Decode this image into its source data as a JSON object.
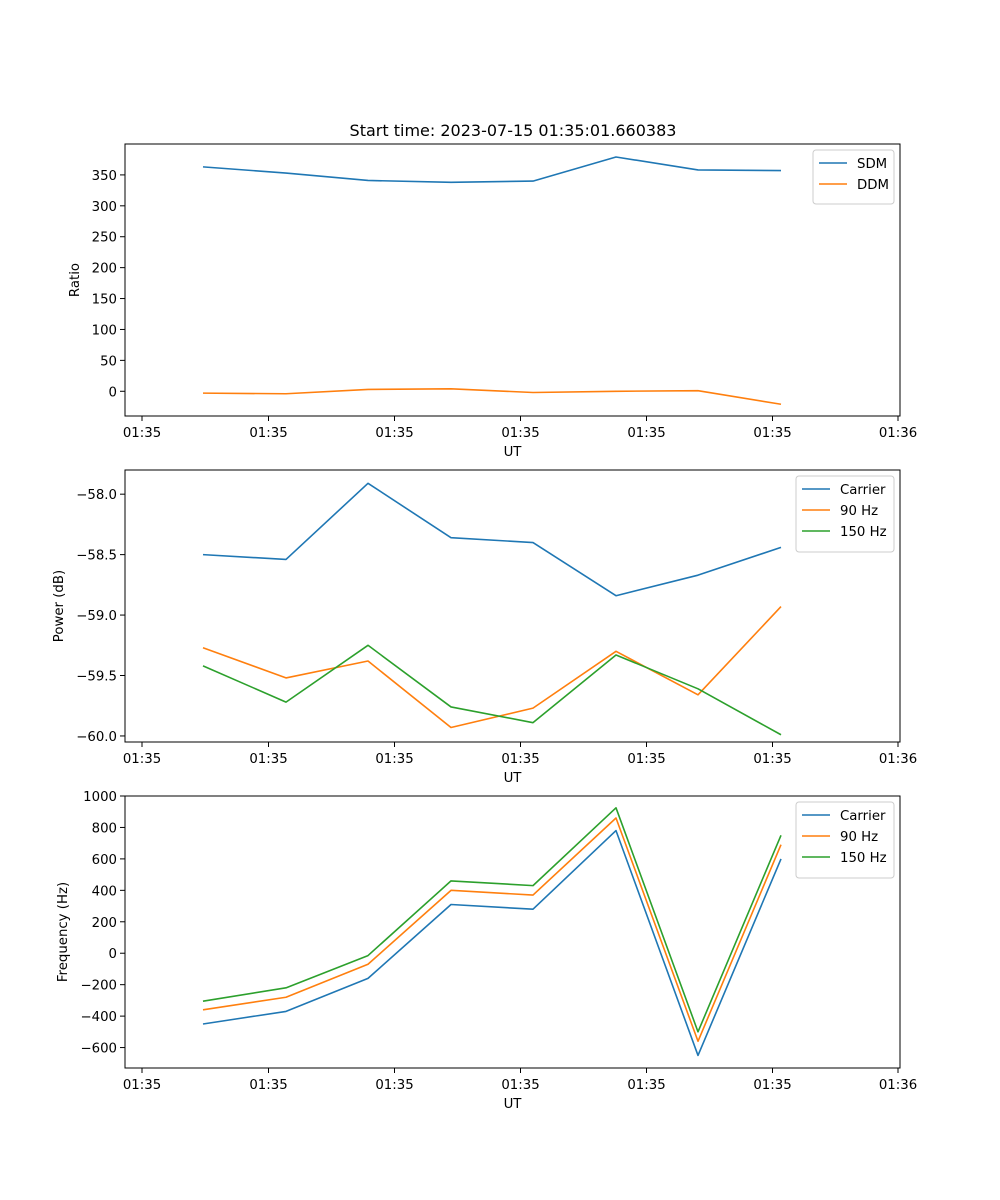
{
  "chart_data": [
    {
      "type": "line",
      "title": "Start time: 2023-07-15 01:35:01.660383",
      "xlabel": "UT",
      "ylabel": "Ratio",
      "x_tick_labels": [
        "01:35",
        "01:35",
        "01:35",
        "01:35",
        "01:35",
        "01:35",
        "01:36"
      ],
      "ylim": [
        -40,
        400
      ],
      "yticks": [
        0,
        50,
        100,
        150,
        200,
        250,
        300,
        350
      ],
      "legend_position": "top-right",
      "series": [
        {
          "name": "SDM",
          "color": "#1f77b4",
          "values": [
            363,
            353,
            341,
            338,
            340,
            379,
            358,
            357
          ]
        },
        {
          "name": "DDM",
          "color": "#ff7f0e",
          "values": [
            -3,
            -4,
            3,
            4,
            -2,
            0,
            1,
            -21
          ]
        }
      ]
    },
    {
      "type": "line",
      "title": "",
      "xlabel": "UT",
      "ylabel": "Power (dB)",
      "x_tick_labels": [
        "01:35",
        "01:35",
        "01:35",
        "01:35",
        "01:35",
        "01:35",
        "01:36"
      ],
      "ylim": [
        -60.05,
        -57.8
      ],
      "yticks": [
        -60.0,
        -59.5,
        -59.0,
        -58.5,
        -58.0
      ],
      "ytick_labels": [
        "−60.0",
        "−59.5",
        "−59.0",
        "−58.5",
        "−58.0"
      ],
      "legend_position": "top-right",
      "series": [
        {
          "name": "Carrier",
          "color": "#1f77b4",
          "values": [
            -58.5,
            -58.54,
            -57.91,
            -58.36,
            -58.4,
            -58.84,
            -58.67,
            -58.44
          ]
        },
        {
          "name": "90 Hz",
          "color": "#ff7f0e",
          "values": [
            -59.27,
            -59.52,
            -59.38,
            -59.93,
            -59.77,
            -59.3,
            -59.66,
            -58.93
          ]
        },
        {
          "name": "150 Hz",
          "color": "#2ca02c",
          "values": [
            -59.42,
            -59.72,
            -59.25,
            -59.76,
            -59.89,
            -59.33,
            -59.61,
            -59.99
          ]
        }
      ]
    },
    {
      "type": "line",
      "title": "",
      "xlabel": "UT",
      "ylabel": "Frequency (Hz)",
      "x_tick_labels": [
        "01:35",
        "01:35",
        "01:35",
        "01:35",
        "01:35",
        "01:35",
        "01:36"
      ],
      "ylim": [
        -730,
        1000
      ],
      "yticks": [
        -600,
        -400,
        -200,
        0,
        200,
        400,
        600,
        800,
        1000
      ],
      "ytick_labels": [
        "−600",
        "−400",
        "−200",
        "0",
        "200",
        "400",
        "600",
        "800",
        "1000"
      ],
      "legend_position": "top-right",
      "series": [
        {
          "name": "Carrier",
          "color": "#1f77b4",
          "values": [
            -450,
            -370,
            -160,
            310,
            280,
            780,
            -650,
            600
          ]
        },
        {
          "name": "90 Hz",
          "color": "#ff7f0e",
          "values": [
            -360,
            -280,
            -70,
            400,
            370,
            860,
            -560,
            690
          ]
        },
        {
          "name": "150 Hz",
          "color": "#2ca02c",
          "values": [
            -305,
            -220,
            -15,
            460,
            430,
            925,
            -500,
            750
          ]
        }
      ]
    }
  ]
}
